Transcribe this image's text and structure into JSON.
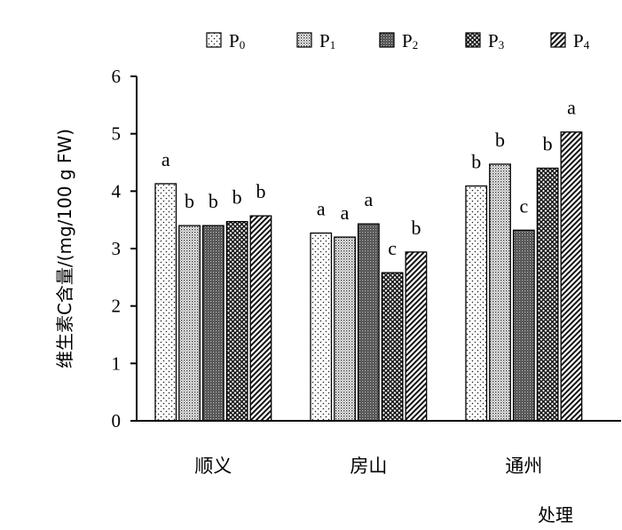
{
  "chart_data": {
    "type": "bar",
    "title": "",
    "xlabel": "处理",
    "ylabel": "维生素C含量/(mg/100 g FW)",
    "categories": [
      "顺义",
      "房山",
      "通州"
    ],
    "ylim": [
      0,
      6
    ],
    "yticks": [
      0,
      1,
      2,
      3,
      4,
      5,
      6
    ],
    "legend_position": "top",
    "series": [
      {
        "name": "P0",
        "name_base": "P",
        "name_sub": "0",
        "pattern": "dots",
        "values": [
          4.13,
          3.27,
          4.09
        ],
        "labels": [
          "a",
          "a",
          "b"
        ]
      },
      {
        "name": "P1",
        "name_base": "P",
        "name_sub": "1",
        "pattern": "dense-dots",
        "values": [
          3.4,
          3.2,
          4.47
        ],
        "labels": [
          "b",
          "a",
          "b"
        ]
      },
      {
        "name": "P2",
        "name_base": "P",
        "name_sub": "2",
        "pattern": "dark-dots",
        "values": [
          3.4,
          3.43,
          3.32
        ],
        "labels": [
          "b",
          "a",
          "c"
        ]
      },
      {
        "name": "P3",
        "name_base": "P",
        "name_sub": "3",
        "pattern": "crosshatch",
        "values": [
          3.47,
          2.58,
          4.4
        ],
        "labels": [
          "b",
          "c",
          "b"
        ]
      },
      {
        "name": "P4",
        "name_base": "P",
        "name_sub": "4",
        "pattern": "diagonal",
        "values": [
          3.57,
          2.94,
          5.03
        ],
        "labels": [
          "b",
          "b",
          "a"
        ]
      }
    ]
  }
}
